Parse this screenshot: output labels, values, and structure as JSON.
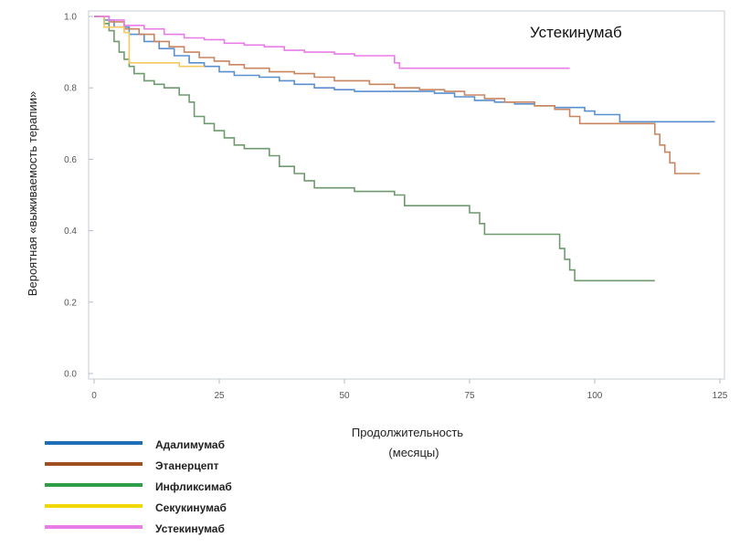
{
  "chart_data": {
    "type": "line",
    "title": "Устекинумаб",
    "xlabel": "Продолжительность (месяцы)",
    "xlabel_lines": [
      "Продолжительность",
      "(месяцы)"
    ],
    "ylabel": "Вероятная «выживаемость терапии»",
    "xlim": [
      0,
      125
    ],
    "ylim": [
      0,
      1.0
    ],
    "xticks": [
      0,
      25,
      50,
      75,
      100,
      125
    ],
    "yticks": [
      0.0,
      0.2,
      0.4,
      0.6,
      0.8,
      1.0
    ],
    "ytick_labels": [
      "0.0",
      "0.2",
      "0.4",
      "0.6",
      "0.8",
      "1.0"
    ],
    "grid": false,
    "legend_position": "bottom-left",
    "series": [
      {
        "name": "Адалимумаб",
        "color": "#1f6fb8",
        "line_color": "#5a8fcf",
        "points": [
          [
            0,
            1.0
          ],
          [
            2,
            0.99
          ],
          [
            4,
            0.97
          ],
          [
            7,
            0.95
          ],
          [
            10,
            0.93
          ],
          [
            13,
            0.91
          ],
          [
            16,
            0.89
          ],
          [
            19,
            0.87
          ],
          [
            22,
            0.86
          ],
          [
            25,
            0.845
          ],
          [
            28,
            0.835
          ],
          [
            33,
            0.83
          ],
          [
            37,
            0.82
          ],
          [
            40,
            0.81
          ],
          [
            44,
            0.8
          ],
          [
            48,
            0.795
          ],
          [
            52,
            0.79
          ],
          [
            60,
            0.79
          ],
          [
            65,
            0.79
          ],
          [
            68,
            0.785
          ],
          [
            72,
            0.775
          ],
          [
            76,
            0.765
          ],
          [
            80,
            0.76
          ],
          [
            84,
            0.755
          ],
          [
            88,
            0.75
          ],
          [
            92,
            0.745
          ],
          [
            95,
            0.745
          ],
          [
            98,
            0.735
          ],
          [
            100,
            0.725
          ],
          [
            104,
            0.725
          ],
          [
            105,
            0.705
          ],
          [
            124,
            0.705
          ]
        ]
      },
      {
        "name": "Этанерцепт",
        "color": "#a0501e",
        "line_color": "#c98560",
        "points": [
          [
            0,
            1.0
          ],
          [
            3,
            0.985
          ],
          [
            6,
            0.965
          ],
          [
            9,
            0.95
          ],
          [
            12,
            0.93
          ],
          [
            15,
            0.915
          ],
          [
            18,
            0.9
          ],
          [
            21,
            0.885
          ],
          [
            24,
            0.875
          ],
          [
            27,
            0.865
          ],
          [
            30,
            0.855
          ],
          [
            35,
            0.845
          ],
          [
            40,
            0.84
          ],
          [
            44,
            0.83
          ],
          [
            48,
            0.82
          ],
          [
            55,
            0.81
          ],
          [
            60,
            0.8
          ],
          [
            65,
            0.795
          ],
          [
            70,
            0.79
          ],
          [
            74,
            0.78
          ],
          [
            78,
            0.77
          ],
          [
            82,
            0.76
          ],
          [
            85,
            0.76
          ],
          [
            88,
            0.75
          ],
          [
            92,
            0.74
          ],
          [
            95,
            0.72
          ],
          [
            97,
            0.7
          ],
          [
            111,
            0.7
          ],
          [
            112,
            0.67
          ],
          [
            113,
            0.64
          ],
          [
            114,
            0.62
          ],
          [
            115,
            0.59
          ],
          [
            116,
            0.56
          ],
          [
            121,
            0.56
          ]
        ]
      },
      {
        "name": "Инфликсимаб",
        "color": "#2f9e48",
        "line_color": "#6f9a6f",
        "points": [
          [
            0,
            1.0
          ],
          [
            2,
            0.98
          ],
          [
            3,
            0.96
          ],
          [
            4,
            0.93
          ],
          [
            5,
            0.9
          ],
          [
            6,
            0.88
          ],
          [
            7,
            0.86
          ],
          [
            8,
            0.84
          ],
          [
            10,
            0.82
          ],
          [
            12,
            0.81
          ],
          [
            14,
            0.8
          ],
          [
            17,
            0.78
          ],
          [
            19,
            0.76
          ],
          [
            20,
            0.72
          ],
          [
            22,
            0.7
          ],
          [
            24,
            0.68
          ],
          [
            26,
            0.66
          ],
          [
            28,
            0.64
          ],
          [
            30,
            0.63
          ],
          [
            35,
            0.61
          ],
          [
            37,
            0.58
          ],
          [
            40,
            0.56
          ],
          [
            42,
            0.54
          ],
          [
            44,
            0.52
          ],
          [
            48,
            0.52
          ],
          [
            50,
            0.52
          ],
          [
            52,
            0.51
          ],
          [
            60,
            0.5
          ],
          [
            62,
            0.47
          ],
          [
            70,
            0.47
          ],
          [
            74,
            0.47
          ],
          [
            75,
            0.45
          ],
          [
            77,
            0.42
          ],
          [
            78,
            0.39
          ],
          [
            80,
            0.39
          ],
          [
            92,
            0.39
          ],
          [
            93,
            0.35
          ],
          [
            94,
            0.32
          ],
          [
            95,
            0.29
          ],
          [
            96,
            0.26
          ],
          [
            104,
            0.26
          ],
          [
            112,
            0.26
          ]
        ]
      },
      {
        "name": "Секукинумаб",
        "color": "#f0d800",
        "line_color": "#f5c860",
        "points": [
          [
            1,
            1.0
          ],
          [
            2,
            0.97
          ],
          [
            3,
            0.97
          ],
          [
            5,
            0.97
          ],
          [
            6,
            0.955
          ],
          [
            7,
            0.87
          ],
          [
            8,
            0.87
          ],
          [
            16,
            0.87
          ],
          [
            17,
            0.86
          ],
          [
            22,
            0.86
          ]
        ]
      },
      {
        "name": "Устекинумаб",
        "color": "#e87de8",
        "line_color": "#e87de8",
        "points": [
          [
            0,
            1.0
          ],
          [
            3,
            0.99
          ],
          [
            6,
            0.975
          ],
          [
            10,
            0.965
          ],
          [
            14,
            0.95
          ],
          [
            18,
            0.94
          ],
          [
            22,
            0.935
          ],
          [
            26,
            0.925
          ],
          [
            30,
            0.92
          ],
          [
            34,
            0.915
          ],
          [
            38,
            0.905
          ],
          [
            42,
            0.9
          ],
          [
            45,
            0.9
          ],
          [
            48,
            0.895
          ],
          [
            52,
            0.89
          ],
          [
            58,
            0.89
          ],
          [
            60,
            0.87
          ],
          [
            61,
            0.855
          ],
          [
            70,
            0.855
          ],
          [
            80,
            0.855
          ],
          [
            90,
            0.855
          ],
          [
            95,
            0.855
          ]
        ]
      }
    ]
  }
}
